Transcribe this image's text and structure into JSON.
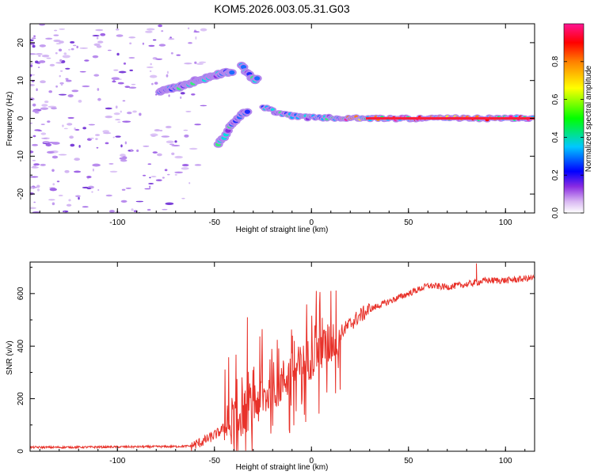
{
  "figure_title": "KOM5.2026.003.05.31.G03",
  "chart_data": [
    {
      "type": "heatmap",
      "title": "KOM5.2026.003.05.31.G03",
      "xlabel": "Height of straight line (km)",
      "ylabel": "Frequency (Hz)",
      "xlim": [
        -145,
        115
      ],
      "ylim": [
        -25,
        25
      ],
      "xticks": [
        -100,
        -50,
        0,
        50,
        100
      ],
      "xtick_labels": [
        "-100",
        "-50",
        "0",
        "50",
        "100"
      ],
      "yticks": [
        -20,
        -10,
        0,
        10,
        20
      ],
      "ytick_labels": [
        "-20",
        "-10",
        "0",
        "10",
        "20"
      ],
      "colorbar": {
        "label": "Normalized spectral amplitude",
        "range": [
          0,
          1
        ],
        "ticks": [
          0,
          0.2,
          0.4,
          0.6,
          0.8
        ],
        "tick_labels": [
          "0.0",
          "0.2",
          "0.4",
          "0.6",
          "0.8"
        ],
        "colormap": [
          "#ffffff",
          "#c8a0f0",
          "#8a2be2",
          "#0000ff",
          "#00ffff",
          "#00ff00",
          "#ffff00",
          "#ff8000",
          "#ff0000",
          "#ff1493"
        ]
      },
      "features": [
        {
          "name": "direct-wave-ridge",
          "points": [
            [
              -78,
              7
            ],
            [
              -70,
              8
            ],
            [
              -62,
              9.5
            ],
            [
              -52,
              11
            ],
            [
              -45,
              12
            ],
            [
              -40,
              12.5
            ]
          ]
        },
        {
          "name": "upper-branch",
          "points": [
            [
              -36,
              14
            ],
            [
              -33,
              12
            ],
            [
              -30,
              10.5
            ],
            [
              -27,
              10
            ]
          ]
        },
        {
          "name": "lower-branch",
          "points": [
            [
              -48,
              -7
            ],
            [
              -44,
              -4
            ],
            [
              -40,
              -1
            ],
            [
              -36,
              1
            ],
            [
              -32,
              2
            ]
          ]
        },
        {
          "name": "reflected-signal-line",
          "points": [
            [
              -25,
              3
            ],
            [
              -20,
              2
            ],
            [
              -10,
              0.6
            ],
            [
              0,
              0.2
            ],
            [
              20,
              0
            ],
            [
              60,
              0
            ],
            [
              115,
              0
            ]
          ]
        }
      ]
    },
    {
      "type": "line",
      "xlabel": "Height of straight line (km)",
      "ylabel": "SNR (v/v)",
      "xlim": [
        -145,
        115
      ],
      "ylim": [
        0,
        720
      ],
      "xticks": [
        -100,
        -50,
        0,
        50,
        100
      ],
      "xtick_labels": [
        "-100",
        "-50",
        "0",
        "50",
        "100"
      ],
      "yticks": [
        0,
        200,
        400,
        600
      ],
      "ytick_labels": [
        "0",
        "200",
        "400",
        "600"
      ],
      "color": "#e8322a",
      "series": [
        {
          "name": "SNR",
          "x": [
            -145,
            -130,
            -110,
            -90,
            -70,
            -62,
            -55,
            -48,
            -42,
            -38,
            -34,
            -30,
            -26,
            -22,
            -16,
            -10,
            -4,
            0,
            4,
            8,
            12,
            18,
            24,
            30,
            40,
            50,
            60,
            70,
            80,
            90,
            100,
            108,
            115
          ],
          "y": [
            15,
            15,
            16,
            17,
            18,
            20,
            40,
            70,
            110,
            140,
            160,
            180,
            200,
            220,
            260,
            300,
            330,
            360,
            380,
            400,
            430,
            470,
            510,
            540,
            570,
            600,
            630,
            625,
            635,
            650,
            650,
            655,
            660
          ]
        }
      ],
      "annotations": [
        {
          "x": -33,
          "peak_y": 510
        },
        {
          "x": 10,
          "peak_y": 610
        },
        {
          "x": 85,
          "peak_y": 715
        }
      ]
    }
  ]
}
